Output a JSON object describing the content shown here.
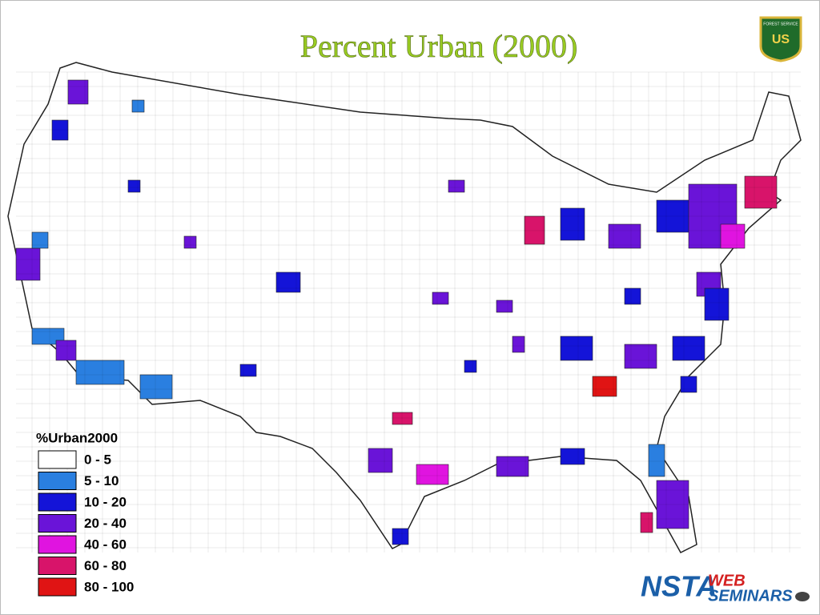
{
  "title": "Percent Urban (2000)",
  "legend": {
    "title": "%Urban2000",
    "items": [
      {
        "label": "0 - 5",
        "color": "#ffffff"
      },
      {
        "label": "5 - 10",
        "color": "#2a7fe0"
      },
      {
        "label": "10 - 20",
        "color": "#1414d8"
      },
      {
        "label": "20 - 40",
        "color": "#6a14d8"
      },
      {
        "label": "40 - 60",
        "color": "#e014e0"
      },
      {
        "label": "60 - 80",
        "color": "#d8146a"
      },
      {
        "label": "80 - 100",
        "color": "#e01414"
      }
    ]
  },
  "badge": {
    "top": "FOREST SERVICE",
    "letters": "US"
  },
  "logo": {
    "brand": "NSTA",
    "web": "WEB",
    "seminars": "SEMINARS"
  }
}
